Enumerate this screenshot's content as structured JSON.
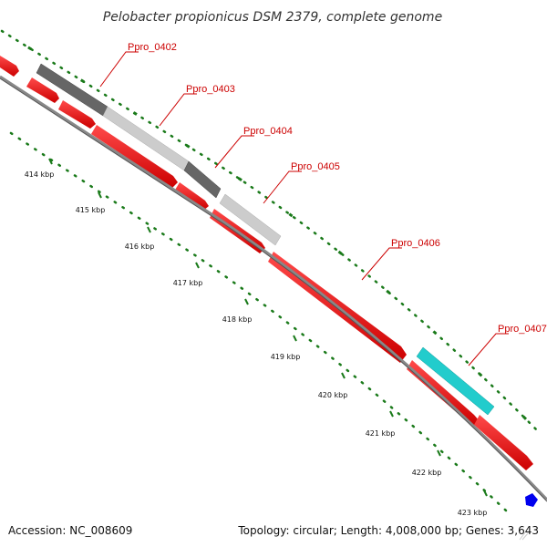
{
  "title": "Pelobacter propionicus DSM 2379, complete genome",
  "footer": {
    "accession": "Accession: NC_008609",
    "summary": "Topology: circular; Length: 4,008,000 bp; Genes: 3,643"
  },
  "colors": {
    "forward_cds": "#ff0000",
    "hit_dark": "#666666",
    "hit_light": "#cccccc",
    "hit_highlight": "#22cccc",
    "label": "#cc0000",
    "tick": "#1a7a1a",
    "backbone": "#888888",
    "marker": "#0000ee"
  },
  "gene_labels": [
    "Ppro_0402",
    "Ppro_0403",
    "Ppro_0404",
    "Ppro_0405",
    "Ppro_0406",
    "Ppro_0407"
  ],
  "kbp_labels": [
    "414 kbp",
    "415 kbp",
    "416 kbp",
    "417 kbp",
    "418 kbp",
    "419 kbp",
    "420 kbp",
    "421 kbp",
    "422 kbp",
    "423 kbp"
  ]
}
